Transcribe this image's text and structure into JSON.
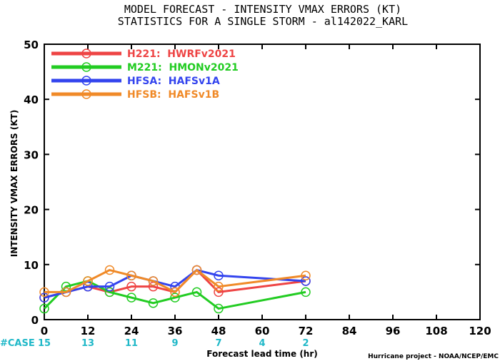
{
  "chart_data": {
    "type": "line",
    "title": "MODEL FORECAST - INTENSITY VMAX ERRORS (KT)",
    "subtitle": "STATISTICS FOR A SINGLE STORM - al142022_KARL",
    "xlabel": "Forecast lead time (hr)",
    "ylabel": "INTENSITY VMAX ERRORS (KT)",
    "xlim": [
      0,
      120
    ],
    "ylim": [
      0,
      50
    ],
    "xticks": [
      0,
      12,
      24,
      36,
      48,
      60,
      72,
      84,
      96,
      108,
      120
    ],
    "yticks": [
      0,
      10,
      20,
      30,
      40,
      50
    ],
    "grid": false,
    "legend_position": "top-left",
    "series": [
      {
        "name": "H221:  HWRFv2021",
        "color": "#ee4444",
        "x": [
          0,
          6,
          12,
          18,
          24,
          30,
          36,
          42,
          48,
          72
        ],
        "y": [
          4,
          5,
          6,
          5,
          6,
          6,
          5,
          9,
          5,
          7
        ]
      },
      {
        "name": "M221:  HMONv2021",
        "color": "#22cc22",
        "x": [
          0,
          6,
          12,
          18,
          24,
          30,
          36,
          42,
          48,
          72
        ],
        "y": [
          2,
          6,
          7,
          5,
          4,
          3,
          4,
          5,
          2,
          5
        ]
      },
      {
        "name": "HFSA:  HAFSv1A",
        "color": "#3344ee",
        "x": [
          0,
          6,
          12,
          18,
          24,
          30,
          36,
          42,
          48,
          72
        ],
        "y": [
          4,
          5,
          6,
          6,
          8,
          7,
          6,
          9,
          8,
          7
        ]
      },
      {
        "name": "HFSB:  HAFSv1B",
        "color": "#f08a28",
        "x": [
          0,
          6,
          12,
          18,
          24,
          30,
          36,
          42,
          48,
          72
        ],
        "y": [
          5,
          5,
          7,
          9,
          8,
          7,
          5,
          9,
          6,
          8
        ]
      }
    ],
    "case_label": "#CASE",
    "case_counts": [
      {
        "x": 0,
        "n": "15"
      },
      {
        "x": 12,
        "n": "13"
      },
      {
        "x": 24,
        "n": "11"
      },
      {
        "x": 36,
        "n": "9"
      },
      {
        "x": 48,
        "n": "7"
      },
      {
        "x": 60,
        "n": "4"
      },
      {
        "x": 72,
        "n": "2"
      }
    ],
    "credit": "Hurricane project - NOAA/NCEP/EMC"
  }
}
